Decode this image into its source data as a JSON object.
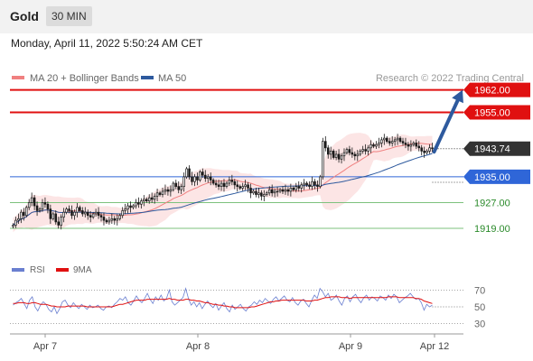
{
  "header": {
    "instrument": "Gold",
    "timeframe": "30 MIN",
    "datetime": "Monday, April 11, 2022 5:50:24 AM CET"
  },
  "legend": {
    "ma20_label": "MA 20 + Bollinger Bands",
    "ma50_label": "MA 50",
    "credit": "Research © 2022 Trading Central",
    "ma20_color": "#f08080",
    "ma50_color": "#2e5a9e"
  },
  "rsi_legend": {
    "rsi_label": "RSI",
    "ma9_label": "9MA",
    "rsi_color": "#6a7fd0",
    "ma9_color": "#e01010"
  },
  "chart_data": {
    "type": "candlestick",
    "price_axis": {
      "range": [
        1912,
        1963
      ]
    },
    "x_ticks": [
      "Apr 7",
      "Apr 8",
      "Apr 9",
      "Apr 12"
    ],
    "price_levels": [
      {
        "value": 1962.0,
        "label": "1962.00",
        "kind": "resistance",
        "color": "#e01010"
      },
      {
        "value": 1955.0,
        "label": "1955.00",
        "kind": "resistance",
        "color": "#e01010"
      },
      {
        "value": 1943.74,
        "label": "1943.74",
        "kind": "current",
        "color": "#333333"
      },
      {
        "value": 1935.0,
        "label": "1935.00",
        "kind": "pivot",
        "color": "#2f66d8"
      },
      {
        "value": 1927.0,
        "label": "1927.00",
        "kind": "support",
        "color": "#2a8a2a"
      },
      {
        "value": 1919.0,
        "label": "1919.00",
        "kind": "support",
        "color": "#2a8a2a"
      }
    ],
    "target_arrow": {
      "from": 1942.5,
      "to": 1962.0
    },
    "close": [
      1920.0,
      1921.5,
      1922.0,
      1924.0,
      1923.0,
      1925.5,
      1927.0,
      1928.5,
      1926.0,
      1924.5,
      1925.0,
      1927.0,
      1926.5,
      1925.0,
      1922.0,
      1923.5,
      1921.0,
      1920.0,
      1922.5,
      1924.0,
      1925.0,
      1924.5,
      1923.0,
      1924.0,
      1925.5,
      1924.5,
      1923.5,
      1924.0,
      1923.0,
      1922.5,
      1923.5,
      1924.0,
      1923.0,
      1922.5,
      1921.5,
      1921.0,
      1921.5,
      1922.0,
      1921.5,
      1922.0,
      1923.0,
      1924.5,
      1925.0,
      1926.0,
      1925.5,
      1926.0,
      1927.0,
      1926.5,
      1927.5,
      1928.0,
      1927.5,
      1928.5,
      1928.0,
      1929.0,
      1930.0,
      1929.5,
      1930.5,
      1931.0,
      1930.5,
      1931.0,
      1933.0,
      1932.0,
      1931.0,
      1932.0,
      1935.0,
      1937.5,
      1935.0,
      1933.5,
      1935.0,
      1934.0,
      1936.5,
      1935.5,
      1934.5,
      1935.0,
      1934.0,
      1933.0,
      1932.5,
      1932.0,
      1933.0,
      1932.0,
      1933.0,
      1934.0,
      1933.5,
      1932.5,
      1932.0,
      1931.5,
      1932.0,
      1932.5,
      1931.5,
      1930.0,
      1930.5,
      1929.5,
      1930.0,
      1929.0,
      1929.5,
      1930.0,
      1931.0,
      1930.0,
      1930.5,
      1930.5,
      1931.0,
      1930.5,
      1931.0,
      1930.5,
      1931.5,
      1931.0,
      1932.0,
      1931.5,
      1932.5,
      1933.0,
      1932.5,
      1932.0,
      1933.5,
      1932.5,
      1932.0,
      1935.0,
      1946.0,
      1944.0,
      1942.0,
      1943.0,
      1941.0,
      1942.0,
      1940.5,
      1941.5,
      1942.5,
      1943.5,
      1942.5,
      1942.0,
      1941.5,
      1942.0,
      1943.0,
      1943.5,
      1943.0,
      1944.0,
      1945.0,
      1944.5,
      1945.0,
      1945.5,
      1946.5,
      1947.0,
      1946.0,
      1945.5,
      1946.0,
      1946.5,
      1947.0,
      1946.0,
      1945.5,
      1945.0,
      1944.5,
      1945.0,
      1945.5,
      1944.5,
      1944.0,
      1943.0,
      1942.5,
      1943.0,
      1944.0,
      1943.74
    ],
    "rsi": {
      "y_ticks": [
        70,
        50,
        30
      ],
      "range": [
        22,
        78
      ],
      "rsi": [
        52,
        55,
        57,
        60,
        54,
        48,
        58,
        62,
        50,
        45,
        52,
        56,
        53,
        47,
        44,
        50,
        42,
        48,
        56,
        58,
        52,
        49,
        55,
        51,
        48,
        53,
        50,
        47,
        52,
        49,
        50,
        52,
        48,
        46,
        50,
        51,
        49,
        53,
        56,
        60,
        58,
        62,
        55,
        52,
        57,
        63,
        58,
        55,
        60,
        66,
        59,
        54,
        62,
        58,
        64,
        57,
        60,
        70,
        56,
        52,
        55,
        58,
        61,
        72,
        60,
        52,
        56,
        50,
        55,
        48,
        53,
        57,
        52,
        49,
        54,
        46,
        51,
        55,
        48,
        44,
        52,
        47,
        50,
        53,
        48,
        45,
        50,
        52,
        56,
        53,
        58,
        55,
        60,
        57,
        54,
        59,
        62,
        57,
        60,
        63,
        58,
        56,
        61,
        55,
        52,
        57,
        59,
        54,
        50,
        58,
        64,
        60,
        72,
        68,
        62,
        66,
        58,
        60,
        64,
        57,
        52,
        60,
        63,
        56,
        62,
        65,
        59,
        55,
        61,
        64,
        58,
        62,
        60,
        57,
        63,
        61,
        58,
        64,
        60,
        65,
        62,
        55,
        58,
        61,
        63,
        66,
        62,
        59,
        60,
        55,
        46,
        53,
        50,
        52
      ],
      "ma9": [
        54,
        54,
        55,
        55,
        55,
        54,
        54,
        55,
        55,
        54,
        53,
        53,
        53,
        52,
        51,
        51,
        50,
        50,
        50,
        50,
        51,
        51,
        51,
        51,
        51,
        51,
        51,
        50,
        50,
        50,
        50,
        50,
        50,
        50,
        50,
        50,
        50,
        51,
        52,
        53,
        53,
        54,
        55,
        56,
        57,
        58,
        58,
        58,
        58,
        59,
        59,
        59,
        59,
        59,
        59,
        59,
        59,
        60,
        59,
        59,
        58,
        58,
        58,
        59,
        59,
        58,
        58,
        57,
        57,
        56,
        55,
        55,
        54,
        53,
        53,
        52,
        52,
        51,
        51,
        50,
        50,
        49,
        49,
        49,
        49,
        49,
        49,
        50,
        50,
        51,
        52,
        53,
        54,
        55,
        56,
        56,
        57,
        57,
        58,
        58,
        58,
        58,
        58,
        58,
        58,
        58,
        58,
        57,
        57,
        57,
        58,
        58,
        59,
        60,
        61,
        61,
        62,
        62,
        62,
        62,
        61,
        61,
        61,
        60,
        61,
        61,
        61,
        61,
        61,
        61,
        61,
        61,
        61,
        61,
        61,
        61,
        61,
        62,
        62,
        62,
        62,
        61,
        61,
        61,
        61,
        61,
        61,
        60,
        60,
        59,
        57,
        56,
        55,
        54
      ]
    }
  }
}
